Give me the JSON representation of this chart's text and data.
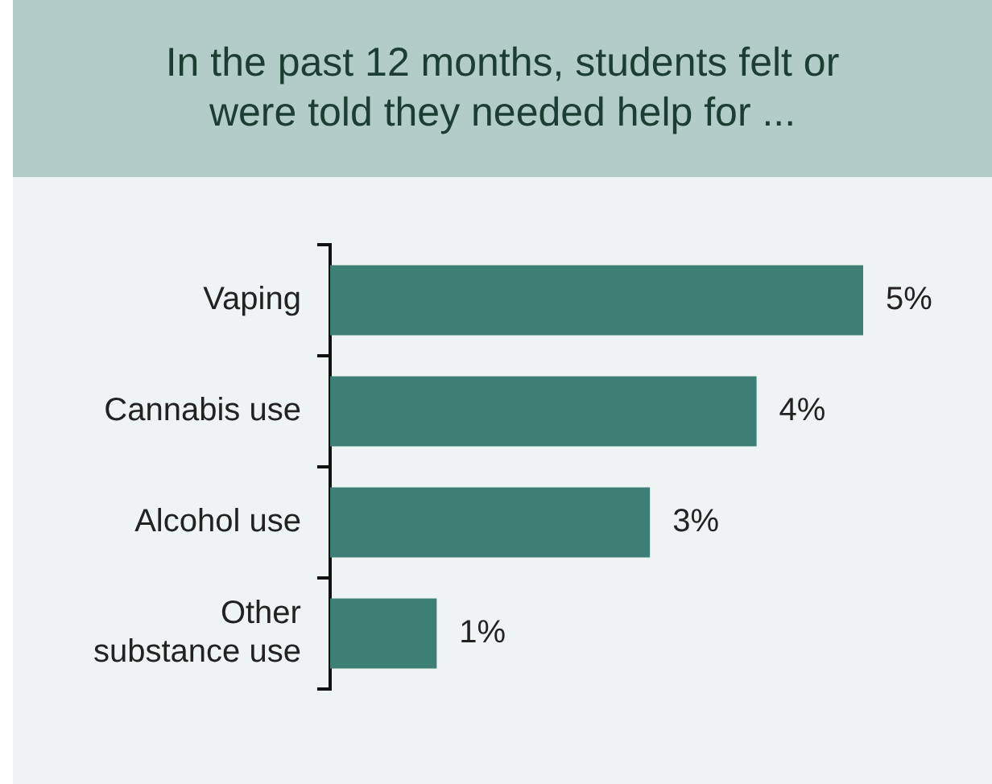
{
  "chart_data": {
    "type": "bar",
    "orientation": "horizontal",
    "title": "In the past 12 months, students felt or were told they needed help for ...",
    "categories": [
      "Vaping",
      "Cannabis use",
      "Alcohol use",
      "Other substance use"
    ],
    "values": [
      5,
      4,
      3,
      1
    ],
    "value_labels": [
      "5%",
      "4%",
      "3%",
      "1%"
    ],
    "color": "#3d7f74",
    "tick_labels": "y",
    "legend": false
  }
}
